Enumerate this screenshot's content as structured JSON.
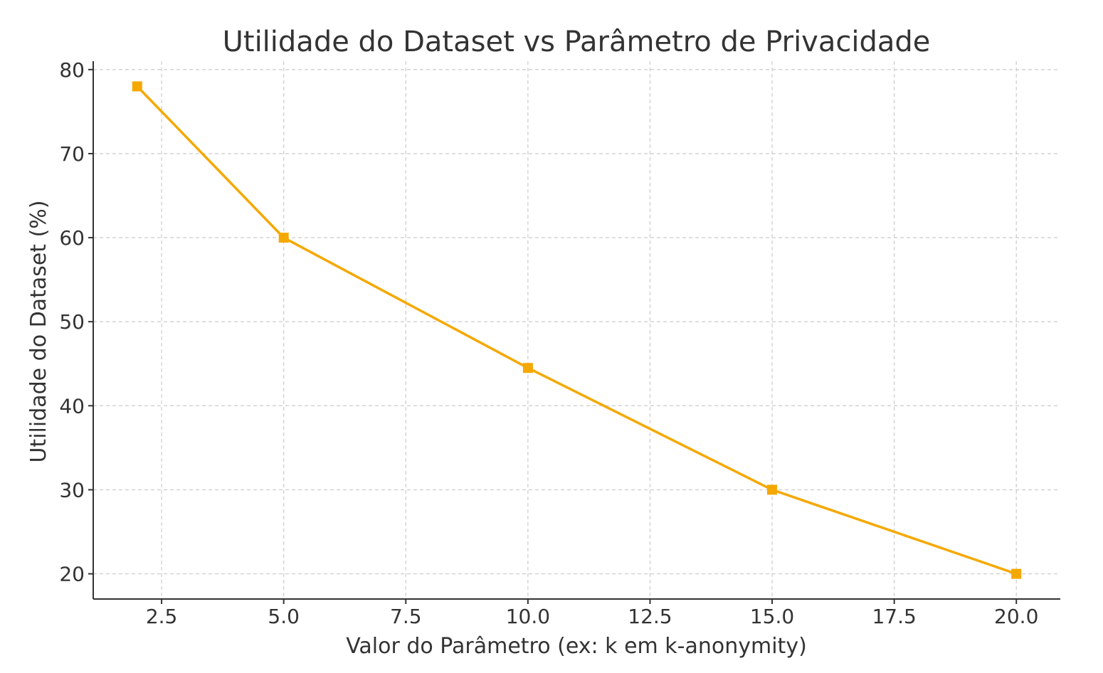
{
  "chart_data": {
    "type": "line",
    "title": "Utilidade do Dataset vs Parâmetro de Privacidade",
    "xlabel": "Valor do Parâmetro (ex: k em k-anonymity)",
    "ylabel": "Utilidade do Dataset (%)",
    "xlim": [
      1.1,
      20.9
    ],
    "ylim": [
      17,
      81
    ],
    "x_ticks": [
      2.5,
      5.0,
      7.5,
      10.0,
      12.5,
      15.0,
      17.5,
      20.0
    ],
    "x_tick_labels": [
      "2.5",
      "5.0",
      "7.5",
      "10.0",
      "12.5",
      "15.0",
      "17.5",
      "20.0"
    ],
    "y_ticks": [
      20,
      30,
      40,
      50,
      60,
      70,
      80
    ],
    "y_tick_labels": [
      "20",
      "30",
      "40",
      "50",
      "60",
      "70",
      "80"
    ],
    "grid": true,
    "marker": "square",
    "series": [
      {
        "color": "#f5a800",
        "x": [
          2,
          5,
          10,
          15,
          20
        ],
        "y": [
          78,
          60,
          44.5,
          30,
          20
        ]
      }
    ]
  }
}
